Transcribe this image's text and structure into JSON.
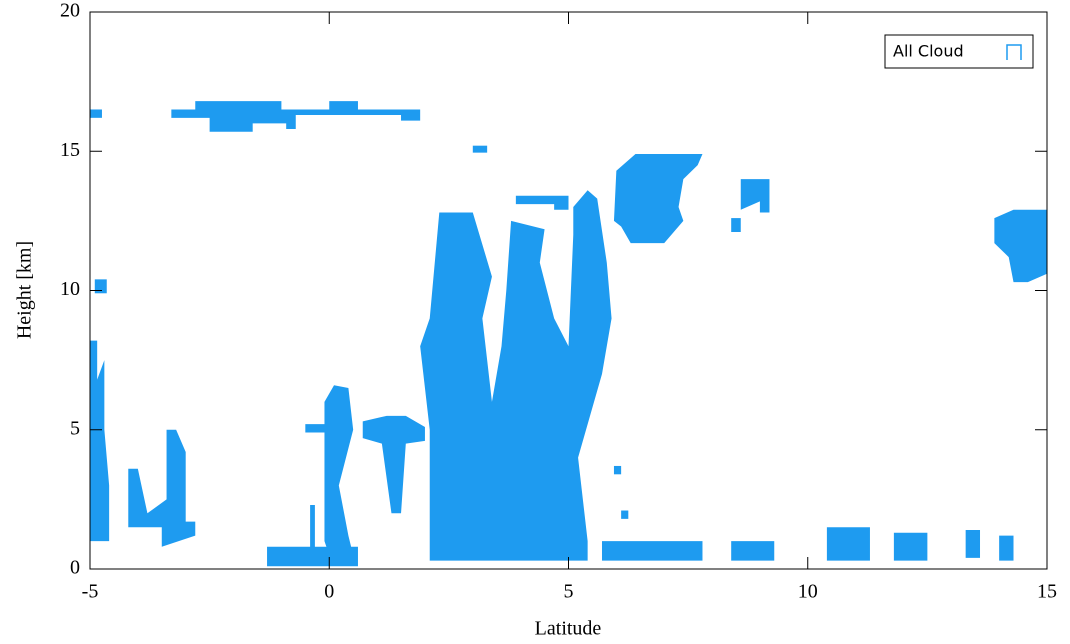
{
  "chart_data": {
    "type": "mask",
    "xlabel": "Latitude",
    "ylabel": "Height [km]",
    "xlim": [
      -5,
      15
    ],
    "xticks": [
      -5,
      0,
      5,
      10,
      15
    ],
    "ylim": [
      0,
      20
    ],
    "yticks": [
      0,
      5,
      10,
      15,
      20
    ],
    "legend": "upper right",
    "series": [
      {
        "name": "All Cloud",
        "color": "#1e9bf0",
        "shapes": [
          {
            "x": [
              -3.3,
              -3.3,
              -2.8,
              -2.8,
              -1,
              -1,
              0,
              0,
              0.6,
              0.6,
              1.9,
              1.9,
              1.5,
              1.5,
              -0.7,
              -0.7,
              -0.9,
              -0.9,
              -1.6,
              -1.6,
              -2.5,
              -2.5
            ],
            "y": [
              16.2,
              16.5,
              16.5,
              16.8,
              16.8,
              16.5,
              16.5,
              16.8,
              16.8,
              16.5,
              16.5,
              16.1,
              16.1,
              16.3,
              16.3,
              15.8,
              15.8,
              16,
              16,
              15.7,
              15.7,
              16.2
            ]
          },
          {
            "x": [
              -5,
              -5,
              -4.75,
              -4.75
            ],
            "y": [
              16.2,
              16.5,
              16.5,
              16.2
            ]
          },
          {
            "x": [
              3,
              3,
              3.3,
              3.3
            ],
            "y": [
              14.95,
              15.2,
              15.2,
              14.95
            ]
          },
          {
            "x": [
              2.1,
              5.4,
              5.4,
              5.2,
              5.7,
              5.9,
              5.8,
              5.6,
              5.4,
              5.1,
              5.1,
              5,
              4.7,
              4.4,
              4.5,
              3.8,
              3.7,
              3.6,
              3.4,
              3.2,
              3.4,
              3,
              2.3,
              2.1,
              1.9,
              2.1,
              2.1
            ],
            "y": [
              0.3,
              0.3,
              1,
              4,
              7,
              9,
              11,
              13.3,
              13.6,
              13,
              12,
              8,
              9,
              11,
              12.2,
              12.5,
              10,
              8,
              6,
              9,
              10.5,
              12.8,
              12.8,
              9,
              8,
              5,
              1
            ]
          },
          {
            "x": [
              3.9,
              3.9,
              5,
              5,
              4.7,
              4.7
            ],
            "y": [
              13.1,
              13.4,
              13.4,
              12.9,
              12.9,
              13.1
            ]
          },
          {
            "x": [
              5.7,
              5.7,
              7.8,
              7.8
            ],
            "y": [
              0.3,
              1,
              1,
              0.3
            ]
          },
          {
            "x": [
              8.4,
              8.4,
              9.3,
              9.3
            ],
            "y": [
              0.3,
              1,
              1,
              0.3
            ]
          },
          {
            "x": [
              10.4,
              10.4,
              11.3,
              11.3
            ],
            "y": [
              0.3,
              1.5,
              1.5,
              0.3
            ]
          },
          {
            "x": [
              11.8,
              11.8,
              12.5,
              12.5
            ],
            "y": [
              0.3,
              1.3,
              1.3,
              0.3
            ]
          },
          {
            "x": [
              13.3,
              13.3,
              13.6,
              13.6
            ],
            "y": [
              0.4,
              1.4,
              1.4,
              0.4
            ]
          },
          {
            "x": [
              14,
              14,
              14.3,
              14.3
            ],
            "y": [
              0.3,
              1.2,
              1.2,
              0.3
            ]
          },
          {
            "x": [
              5.95,
              6,
              6.4,
              7.8,
              7.7,
              7.4,
              7.3,
              7.4,
              7,
              6.3,
              6.1
            ],
            "y": [
              12.5,
              14.3,
              14.9,
              14.9,
              14.5,
              14,
              13,
              12.5,
              11.7,
              11.7,
              12.3
            ]
          },
          {
            "x": [
              8.6,
              8.6,
              9.2,
              9.2,
              9,
              9
            ],
            "y": [
              12.9,
              14,
              14,
              12.8,
              12.8,
              13.2
            ]
          },
          {
            "x": [
              8.4,
              8.4,
              8.6,
              8.6
            ],
            "y": [
              12.1,
              12.6,
              12.6,
              12.1
            ]
          },
          {
            "x": [
              13.9,
              13.9,
              14.3,
              15,
              15,
              14.6,
              14.3,
              14.2
            ],
            "y": [
              11.7,
              12.6,
              12.9,
              12.9,
              10.6,
              10.3,
              10.3,
              11.2
            ]
          },
          {
            "x": [
              -5,
              -5,
              -4.85,
              -4.85,
              -4.7,
              -4.7,
              -4.6,
              -4.6
            ],
            "y": [
              1,
              8.2,
              8.2,
              6.8,
              7.5,
              5,
              3,
              1
            ]
          },
          {
            "x": [
              -4.9,
              -4.9,
              -4.65,
              -4.65
            ],
            "y": [
              9.9,
              10.4,
              10.4,
              9.9
            ]
          },
          {
            "x": [
              -4.2,
              -4.2,
              -4,
              -3.8,
              -3.4,
              -3.4,
              -3.2,
              -3,
              -3,
              -2.8,
              -2.8,
              -3.5,
              -3.5
            ],
            "y": [
              1.5,
              3.6,
              3.6,
              2,
              2.5,
              5,
              5,
              4.2,
              1.7,
              1.7,
              1.2,
              0.8,
              1.5
            ]
          },
          {
            "x": [
              -0.1,
              -0.1,
              0.1,
              0.4,
              0.5,
              0.2,
              0.4,
              0.5,
              0
            ],
            "y": [
              1,
              6,
              6.6,
              6.5,
              5,
              3,
              1.2,
              0.5,
              0.5
            ]
          },
          {
            "x": [
              -0.5,
              -0.5,
              0,
              0
            ],
            "y": [
              4.9,
              5.2,
              5.2,
              4.9
            ]
          },
          {
            "x": [
              0.7,
              0.7,
              1.2,
              1.6,
              2,
              2,
              1.6,
              1.5,
              1.3,
              1.1
            ],
            "y": [
              4.7,
              5.3,
              5.5,
              5.5,
              5.1,
              4.6,
              4.5,
              2,
              2,
              4.5
            ]
          },
          {
            "x": [
              -1.3,
              -1.3,
              -0.4,
              -0.4,
              -0.3,
              -0.3,
              0.6,
              0.6
            ],
            "y": [
              0.1,
              0.8,
              0.8,
              2.3,
              2.3,
              0.8,
              0.8,
              0.1
            ]
          },
          {
            "x": [
              5.95,
              5.95,
              6.1,
              6.1
            ],
            "y": [
              3.4,
              3.7,
              3.7,
              3.4
            ]
          },
          {
            "x": [
              6.1,
              6.1,
              6.25,
              6.25
            ],
            "y": [
              1.8,
              2.1,
              2.1,
              1.8
            ]
          }
        ]
      }
    ]
  }
}
